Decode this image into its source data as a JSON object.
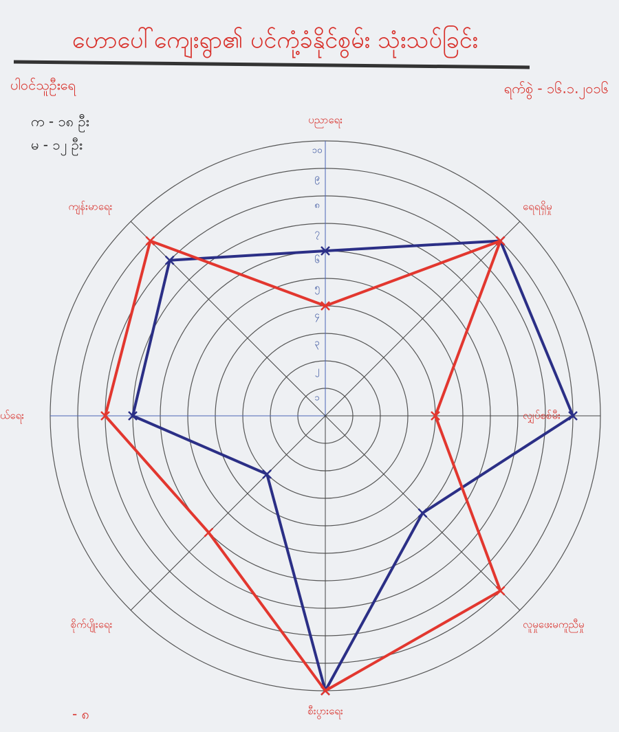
{
  "chart_data": {
    "type": "radar",
    "title": "ဟောပေါ်ကျေးရွာ၏ ပင်ကုံ့ခံနိုင်စွမ်း သုံးသပ်ခြင်း",
    "annotations": [
      "ပါဝင်သူဦးရေ",
      "က - ၁၈ ဦး",
      "မ - ၁၂ ဦး",
      "ရက်စွဲ - ၁၆.၁.၂၀၁၆",
      "- ၈"
    ],
    "categories": [
      "ပညာရေး",
      "ရေရရှိမှု",
      "လျှပ်စစ်မီး",
      "လူမှုဖေးမကူညီမှု",
      "စီးပွားရေး",
      "စိုက်ပျိုးရေး",
      "လမ်းပန်းဆက်သွယ်ရေး",
      "ကျန်းမာရေး"
    ],
    "series": [
      {
        "color": "#2b2f86",
        "values": [
          6,
          9,
          9,
          5,
          10,
          3,
          7,
          8
        ]
      },
      {
        "color": "#e2372f",
        "values": [
          4,
          9,
          4,
          9,
          10,
          6,
          8,
          9
        ]
      }
    ],
    "ylim": [
      0,
      10
    ],
    "yticks": [
      {
        "value": 1,
        "label": "၁"
      },
      {
        "value": 2,
        "label": "၂"
      },
      {
        "value": 3,
        "label": "၃"
      },
      {
        "value": 4,
        "label": "၄"
      },
      {
        "value": 5,
        "label": "၅"
      },
      {
        "value": 6,
        "label": "၆"
      },
      {
        "value": 7,
        "label": "၇"
      },
      {
        "value": 8,
        "label": "၈"
      },
      {
        "value": 9,
        "label": "၉"
      },
      {
        "value": 10,
        "label": "၁၀"
      }
    ],
    "grid": true
  }
}
